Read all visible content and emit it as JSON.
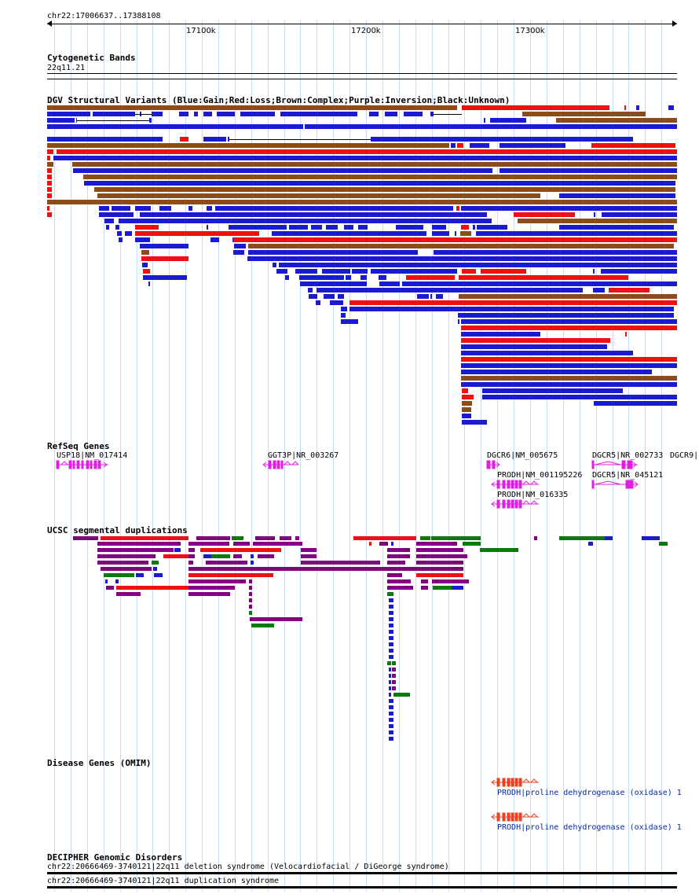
{
  "header": {
    "locus": "chr22:17006637..17388108",
    "ticks": [
      "17100k",
      "17200k",
      "17300k"
    ]
  },
  "tracks": {
    "cytobands": {
      "title": "Cytogenetic Bands",
      "band": "22q11.21"
    },
    "dgv": {
      "title": "DGV Structural Variants (Blue:Gain;Red:Loss;Brown:Complex;Purple:Inversion;Black:Unknown)"
    },
    "refseq": {
      "title": "RefSeq Genes",
      "genes": [
        "USP18|NM_017414",
        "GGT3P|NR_003267",
        "DGCR6|NM_005675",
        "DGCR5|NR_002733",
        "DGCR9|",
        "PRODH|NM_001195226",
        "DGCR5|NR_045121",
        "PRODH|NM_016335"
      ]
    },
    "segdup": {
      "title": "UCSC segmental duplications"
    },
    "omim": {
      "title": "Disease Genes (OMIM)",
      "entries": [
        "PRODH|proline dehydrogenase (oxidase) 1",
        "PRODH|proline dehydrogenase (oxidase) 1"
      ]
    },
    "decipher": {
      "title": "DECIPHER Genomic Disorders",
      "entries": [
        "chr22:20666469-3740121|22q11 deletion syndrome (Velocardiofacial / DiGeorge syndrome)",
        "chr22:20666469-3740121|22q11 duplication syndrome"
      ]
    }
  },
  "colors": {
    "gain": "#1a1ad0",
    "loss": "#ee1111",
    "complex": "#8b4c1a",
    "inversion": "#800080",
    "segdup_green": "#0a7a0a",
    "gene": "#e020e0",
    "omim_gene": "#ee4020",
    "grid": "#c9dcf2"
  }
}
